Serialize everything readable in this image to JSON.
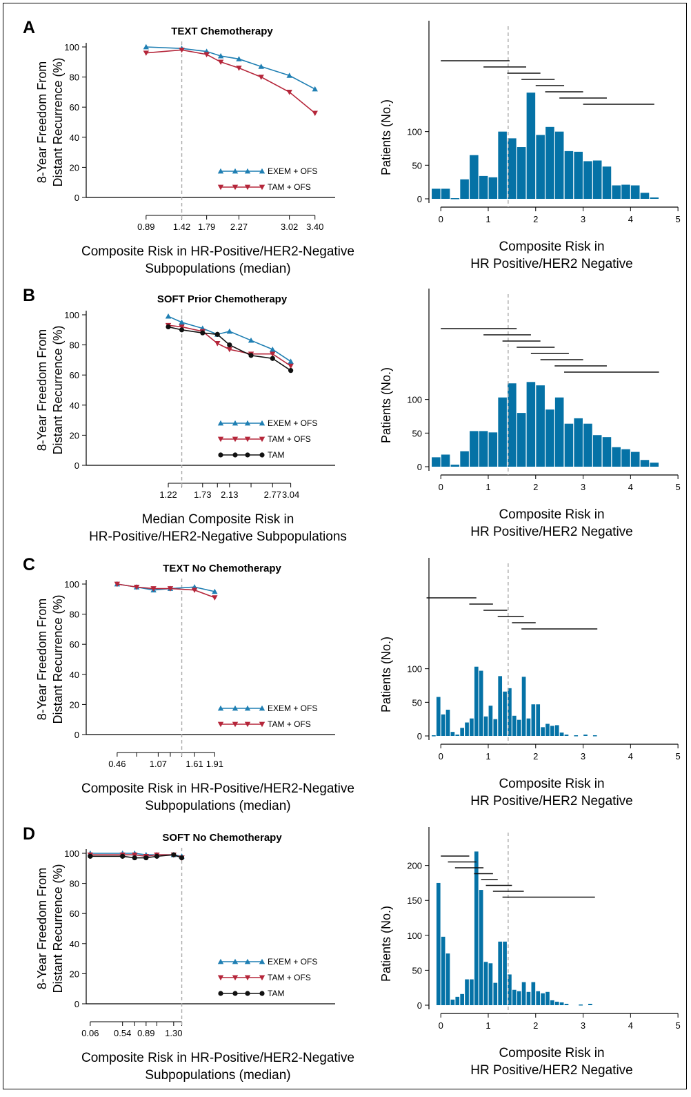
{
  "colors": {
    "exem": "#1f7fb3",
    "tam_ofs": "#b5263a",
    "tam": "#111111",
    "bar": "#0572a6",
    "ref": "#aaaaaa"
  },
  "ref_line_x": 1.42,
  "chart_data": [
    {
      "type": "line",
      "panel": "A",
      "title": "TEXT Chemotherapy",
      "xlabel": "Composite Risk in HR-Positive/HER2-Negative\nSubpopulations (median)",
      "ylabel": "8-Year Freedom From\nDistant Recurrence (%)",
      "ylim": [
        0,
        100
      ],
      "yticks": [
        0,
        20,
        40,
        60,
        80,
        100
      ],
      "xlim": [
        0,
        3.7
      ],
      "xtick_positions": [
        0.89,
        1.42,
        1.79,
        2.27,
        3.02,
        3.4
      ],
      "xtick_labels": [
        "0.89",
        "1.42",
        "1.79",
        "2.27",
        "3.02",
        "3.40"
      ],
      "series": [
        {
          "name": "EXEM + OFS",
          "key": "exem",
          "marker": "tri-up",
          "x": [
            0.89,
            1.42,
            1.79,
            2.0,
            2.27,
            2.6,
            3.02,
            3.4
          ],
          "values": [
            100,
            99,
            97,
            94,
            92,
            87,
            81,
            72
          ]
        },
        {
          "name": "TAM + OFS",
          "key": "tam_ofs",
          "marker": "tri-down",
          "x": [
            0.89,
            1.42,
            1.79,
            2.0,
            2.27,
            2.6,
            3.02,
            3.4
          ],
          "values": [
            96,
            98,
            95,
            90,
            86,
            80,
            70,
            56
          ]
        }
      ]
    },
    {
      "type": "bar",
      "panel": "A",
      "xlabel": "Composite Risk in\nHR Positive/HER2 Negative",
      "ylabel": "Patients (No.)",
      "xlim": [
        -0.25,
        5.1
      ],
      "xticks": [
        0,
        1,
        2,
        3,
        4,
        5
      ],
      "ylim": [
        0,
        265
      ],
      "yticks": [
        0,
        50,
        100
      ],
      "bins": [
        [
          -0.2,
          0.0,
          15
        ],
        [
          0.0,
          0.2,
          15
        ],
        [
          0.2,
          0.4,
          1
        ],
        [
          0.4,
          0.6,
          29
        ],
        [
          0.6,
          0.8,
          65
        ],
        [
          0.8,
          1.0,
          34
        ],
        [
          1.0,
          1.2,
          32
        ],
        [
          1.2,
          1.4,
          100
        ],
        [
          1.4,
          1.6,
          90
        ],
        [
          1.6,
          1.8,
          77
        ],
        [
          1.8,
          2.0,
          158
        ],
        [
          2.0,
          2.2,
          95
        ],
        [
          2.2,
          2.4,
          107
        ],
        [
          2.4,
          2.6,
          100
        ],
        [
          2.6,
          2.8,
          71
        ],
        [
          2.8,
          3.0,
          70
        ],
        [
          3.0,
          3.2,
          56
        ],
        [
          3.2,
          3.4,
          57
        ],
        [
          3.4,
          3.6,
          48
        ],
        [
          3.6,
          3.8,
          20
        ],
        [
          3.8,
          4.0,
          21
        ],
        [
          4.0,
          4.2,
          20
        ],
        [
          4.2,
          4.4,
          9
        ],
        [
          4.4,
          4.6,
          2
        ]
      ],
      "windows": [
        [
          0.0,
          1.45
        ],
        [
          0.9,
          1.8
        ],
        [
          1.4,
          2.1
        ],
        [
          1.7,
          2.4
        ],
        [
          2.0,
          2.6
        ],
        [
          2.2,
          3.0
        ],
        [
          2.5,
          3.5
        ],
        [
          3.0,
          4.5
        ]
      ]
    },
    {
      "type": "line",
      "panel": "B",
      "title": "SOFT Prior Chemotherapy",
      "xlabel": "Median Composite Risk in\nHR-Positive/HER2-Negative Subpopulations",
      "ylabel": "8-Year Freedom From\nDistant Recurrence (%)",
      "ylim": [
        0,
        100
      ],
      "yticks": [
        0,
        20,
        40,
        60,
        80,
        100
      ],
      "xlim": [
        0,
        3.7
      ],
      "xtick_positions": [
        1.22,
        1.73,
        2.13,
        2.77,
        3.04
      ],
      "xtick_labels": [
        "1.22",
        "1.73",
        "2.13",
        "2.77",
        "3.04"
      ],
      "extra_ticks": [
        1.42,
        1.95,
        2.45
      ],
      "series": [
        {
          "name": "EXEM + OFS",
          "key": "exem",
          "marker": "tri-up",
          "x": [
            1.22,
            1.42,
            1.73,
            1.95,
            2.13,
            2.45,
            2.77,
            3.04
          ],
          "values": [
            99,
            95,
            91,
            87,
            89,
            83,
            77,
            69
          ]
        },
        {
          "name": "TAM + OFS",
          "key": "tam_ofs",
          "marker": "tri-down",
          "x": [
            1.22,
            1.42,
            1.73,
            1.95,
            2.13,
            2.45,
            2.77,
            3.04
          ],
          "values": [
            93,
            92,
            89,
            81,
            77,
            74,
            74,
            66
          ]
        },
        {
          "name": "TAM",
          "key": "tam",
          "marker": "circle",
          "x": [
            1.22,
            1.42,
            1.73,
            1.95,
            2.13,
            2.45,
            2.77,
            3.04
          ],
          "values": [
            92,
            90,
            88,
            87,
            80,
            73,
            71,
            63
          ]
        }
      ]
    },
    {
      "type": "bar",
      "panel": "B",
      "xlabel": "Composite Risk in\nHR Positive/HER2 Negative",
      "ylabel": "Patients (No.)",
      "xlim": [
        -0.25,
        5.1
      ],
      "xticks": [
        0,
        1,
        2,
        3,
        4,
        5
      ],
      "ylim": [
        0,
        265
      ],
      "yticks": [
        0,
        50,
        100
      ],
      "bins": [
        [
          -0.2,
          0.0,
          14
        ],
        [
          0.0,
          0.2,
          18
        ],
        [
          0.2,
          0.4,
          3
        ],
        [
          0.4,
          0.6,
          23
        ],
        [
          0.6,
          0.8,
          53
        ],
        [
          0.8,
          1.0,
          53
        ],
        [
          1.0,
          1.2,
          51
        ],
        [
          1.2,
          1.4,
          103
        ],
        [
          1.4,
          1.6,
          124
        ],
        [
          1.6,
          1.8,
          80
        ],
        [
          1.8,
          2.0,
          126
        ],
        [
          2.0,
          2.2,
          121
        ],
        [
          2.2,
          2.4,
          85
        ],
        [
          2.4,
          2.6,
          103
        ],
        [
          2.6,
          2.8,
          64
        ],
        [
          2.8,
          3.0,
          72
        ],
        [
          3.0,
          3.2,
          64
        ],
        [
          3.2,
          3.4,
          47
        ],
        [
          3.4,
          3.6,
          44
        ],
        [
          3.6,
          3.8,
          29
        ],
        [
          3.8,
          4.0,
          26
        ],
        [
          4.0,
          4.2,
          22
        ],
        [
          4.2,
          4.4,
          10
        ],
        [
          4.4,
          4.6,
          6
        ]
      ],
      "windows": [
        [
          0.0,
          1.6
        ],
        [
          0.9,
          1.9
        ],
        [
          1.3,
          2.1
        ],
        [
          1.6,
          2.4
        ],
        [
          1.9,
          2.7
        ],
        [
          2.1,
          3.0
        ],
        [
          2.4,
          3.5
        ],
        [
          2.6,
          4.6
        ]
      ]
    },
    {
      "type": "line",
      "panel": "C",
      "title": "TEXT No Chemotherapy",
      "xlabel": "Composite Risk in HR-Positive/HER2-Negative\nSubpopulations (median)",
      "ylabel": "8-Year Freedom From\nDistant Recurrence (%)",
      "ylim": [
        0,
        100
      ],
      "yticks": [
        0,
        20,
        40,
        60,
        80,
        100
      ],
      "xlim": [
        0,
        3.7
      ],
      "xtick_positions": [
        0.46,
        1.07,
        1.61,
        1.91
      ],
      "xtick_labels": [
        "0.46",
        "1.07",
        "1.61",
        "1.91"
      ],
      "extra_ticks": [
        0.75,
        1.25,
        1.42
      ],
      "series": [
        {
          "name": "EXEM + OFS",
          "key": "exem",
          "marker": "tri-up",
          "x": [
            0.46,
            0.75,
            1.0,
            1.25,
            1.61,
            1.91
          ],
          "values": [
            100,
            98,
            96,
            97,
            98,
            95
          ]
        },
        {
          "name": "TAM + OFS",
          "key": "tam_ofs",
          "marker": "tri-down",
          "x": [
            0.46,
            0.75,
            1.0,
            1.25,
            1.61,
            1.91
          ],
          "values": [
            100,
            98,
            97,
            97,
            96,
            91
          ]
        }
      ]
    },
    {
      "type": "bar",
      "panel": "C",
      "xlabel": "Composite Risk in\nHR Positive/HER2 Negative",
      "ylabel": "Patients (No.)",
      "xlim": [
        -0.25,
        5.1
      ],
      "xticks": [
        0,
        1,
        2,
        3,
        4,
        5
      ],
      "ylim": [
        0,
        265
      ],
      "yticks": [
        0,
        50,
        100
      ],
      "bins": [
        [
          -0.2,
          -0.1,
          1
        ],
        [
          -0.1,
          0.0,
          58
        ],
        [
          0.0,
          0.1,
          32
        ],
        [
          0.1,
          0.2,
          39
        ],
        [
          0.2,
          0.3,
          6
        ],
        [
          0.3,
          0.4,
          2
        ],
        [
          0.4,
          0.5,
          12
        ],
        [
          0.5,
          0.6,
          20
        ],
        [
          0.6,
          0.7,
          26
        ],
        [
          0.7,
          0.8,
          103
        ],
        [
          0.8,
          0.9,
          97
        ],
        [
          0.9,
          1.0,
          29
        ],
        [
          1.0,
          1.1,
          45
        ],
        [
          1.1,
          1.2,
          25
        ],
        [
          1.2,
          1.3,
          89
        ],
        [
          1.3,
          1.4,
          66
        ],
        [
          1.4,
          1.5,
          71
        ],
        [
          1.5,
          1.6,
          30
        ],
        [
          1.6,
          1.7,
          24
        ],
        [
          1.7,
          1.8,
          88
        ],
        [
          1.8,
          1.9,
          26
        ],
        [
          1.9,
          2.0,
          47
        ],
        [
          2.0,
          2.1,
          47
        ],
        [
          2.1,
          2.2,
          13
        ],
        [
          2.2,
          2.3,
          18
        ],
        [
          2.3,
          2.4,
          15
        ],
        [
          2.4,
          2.5,
          16
        ],
        [
          2.5,
          2.6,
          5
        ],
        [
          2.6,
          2.7,
          2
        ],
        [
          2.8,
          2.9,
          1
        ],
        [
          3.0,
          3.1,
          2
        ],
        [
          3.2,
          3.3,
          1
        ]
      ],
      "windows": [
        [
          -0.3,
          0.75
        ],
        [
          0.6,
          1.1
        ],
        [
          0.9,
          1.4
        ],
        [
          1.2,
          1.75
        ],
        [
          1.5,
          2.0
        ],
        [
          1.7,
          3.3
        ]
      ]
    },
    {
      "type": "line",
      "panel": "D",
      "title": "SOFT No Chemotherapy",
      "xlabel": "Composite Risk in HR-Positive/HER2-Negative\nSubpopulations (median)",
      "ylabel": "8-Year Freedom From\nDistant Recurrence (%)",
      "ylim": [
        0,
        100
      ],
      "yticks": [
        0,
        20,
        40,
        60,
        80,
        100
      ],
      "xlim": [
        0,
        3.7
      ],
      "xtick_positions": [
        0.06,
        0.54,
        0.89,
        1.3
      ],
      "xtick_labels": [
        "0.06",
        "0.54",
        "0.89",
        "1.30"
      ],
      "extra_ticks": [
        0.72,
        1.05,
        1.42
      ],
      "series": [
        {
          "name": "EXEM + OFS",
          "key": "exem",
          "marker": "tri-up",
          "x": [
            0.06,
            0.54,
            0.72,
            0.89,
            1.05,
            1.3,
            1.42
          ],
          "values": [
            100,
            100,
            100,
            99,
            99,
            99,
            98
          ]
        },
        {
          "name": "TAM + OFS",
          "key": "tam_ofs",
          "marker": "tri-down",
          "x": [
            0.06,
            0.54,
            0.72,
            0.89,
            1.05,
            1.3,
            1.42
          ],
          "values": [
            99,
            99,
            99,
            98,
            99,
            99,
            97
          ]
        },
        {
          "name": "TAM",
          "key": "tam",
          "marker": "circle",
          "x": [
            0.06,
            0.54,
            0.72,
            0.89,
            1.05,
            1.3,
            1.42
          ],
          "values": [
            98,
            98,
            97,
            97,
            98,
            99,
            97
          ]
        }
      ]
    },
    {
      "type": "bar",
      "panel": "D",
      "xlabel": "Composite Risk in\nHR Positive/HER2 Negative",
      "ylabel": "Patients (No.)",
      "xlim": [
        -0.25,
        5.1
      ],
      "xticks": [
        0,
        1,
        2,
        3,
        4,
        5
      ],
      "ylim": [
        0,
        255
      ],
      "yticks": [
        0,
        50,
        100,
        150,
        200
      ],
      "bins": [
        [
          -0.1,
          0.0,
          175
        ],
        [
          0.0,
          0.1,
          98
        ],
        [
          0.1,
          0.2,
          74
        ],
        [
          0.2,
          0.3,
          8
        ],
        [
          0.3,
          0.4,
          12
        ],
        [
          0.4,
          0.5,
          16
        ],
        [
          0.5,
          0.6,
          37
        ],
        [
          0.6,
          0.7,
          37
        ],
        [
          0.7,
          0.8,
          220
        ],
        [
          0.8,
          0.9,
          165
        ],
        [
          0.9,
          1.0,
          62
        ],
        [
          1.0,
          1.1,
          60
        ],
        [
          1.1,
          1.2,
          32
        ],
        [
          1.2,
          1.3,
          91
        ],
        [
          1.3,
          1.4,
          91
        ],
        [
          1.4,
          1.5,
          44
        ],
        [
          1.5,
          1.6,
          22
        ],
        [
          1.6,
          1.7,
          20
        ],
        [
          1.7,
          1.8,
          33
        ],
        [
          1.8,
          1.9,
          19
        ],
        [
          1.9,
          2.0,
          33
        ],
        [
          2.0,
          2.1,
          20
        ],
        [
          2.1,
          2.2,
          17
        ],
        [
          2.2,
          2.3,
          19
        ],
        [
          2.3,
          2.4,
          7
        ],
        [
          2.4,
          2.5,
          5
        ],
        [
          2.5,
          2.6,
          4
        ],
        [
          2.6,
          2.7,
          2
        ],
        [
          2.9,
          3.0,
          1
        ],
        [
          3.1,
          3.2,
          2
        ]
      ],
      "windows": [
        [
          0.0,
          0.6
        ],
        [
          0.15,
          0.75
        ],
        [
          0.3,
          0.9
        ],
        [
          0.7,
          1.1
        ],
        [
          0.85,
          1.2
        ],
        [
          0.95,
          1.5
        ],
        [
          1.1,
          1.75
        ],
        [
          1.3,
          3.25
        ]
      ]
    }
  ],
  "panels": [
    {
      "letter": "A"
    },
    {
      "letter": "B"
    },
    {
      "letter": "C"
    },
    {
      "letter": "D"
    }
  ]
}
